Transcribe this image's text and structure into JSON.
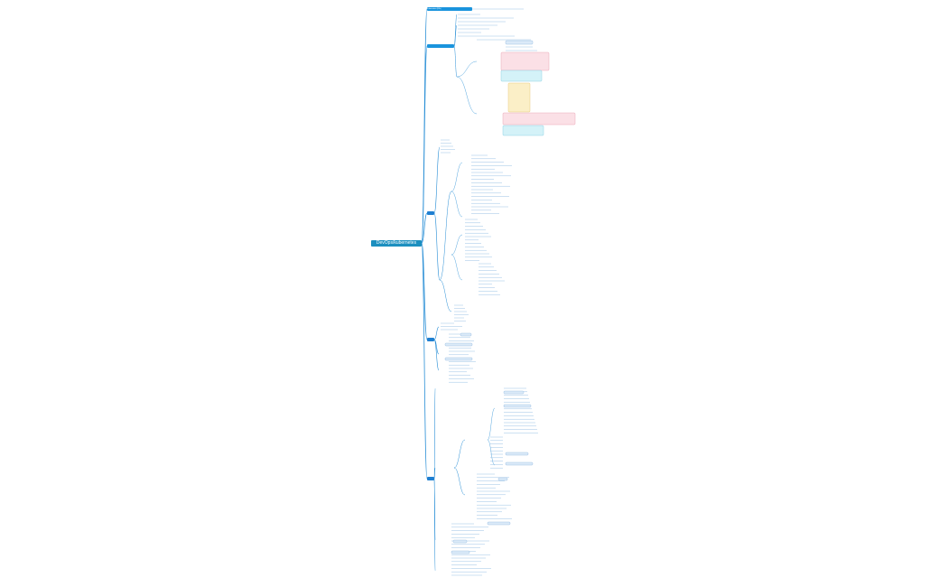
{
  "root": {
    "label": "DevOps/kubernetes"
  },
  "header_bars": [
    {
      "label": "Kubernetes (K8s)"
    },
    {
      "label": ""
    }
  ],
  "colors": {
    "root_fill": "#1c8fbf",
    "branch_fill": "#1f7fd1",
    "connector": "#2a8fd6",
    "leaf_line": "#9cc3e6",
    "block_blue": "#dbeaf8",
    "block_pink": "#fbe0e6",
    "block_cyan": "#d4f2f8",
    "block_yellow": "#fbefc7"
  }
}
